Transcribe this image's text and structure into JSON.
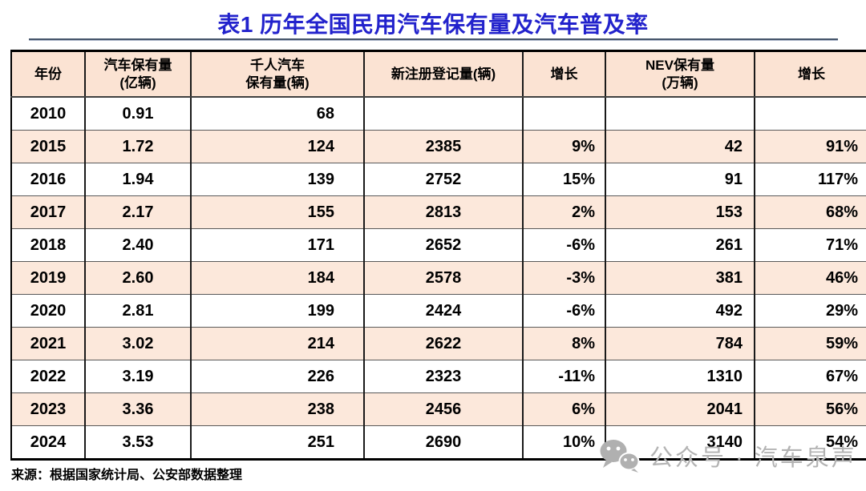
{
  "title": "表1 历年全国民用汽车保有量及汽车普及率",
  "chart_data": {
    "type": "table",
    "title": "表1 历年全国民用汽车保有量及汽车普及率",
    "columns": [
      "年份",
      "汽车保有量\n(亿辆)",
      "千人汽车\n保有量(辆)",
      "新注册登记量(辆)",
      "增长",
      "NEV保有量\n(万辆)",
      "增长"
    ],
    "rows": [
      [
        "2010",
        "0.91",
        "68",
        "",
        "",
        "",
        ""
      ],
      [
        "2015",
        "1.72",
        "124",
        "2385",
        "9%",
        "42",
        "91%"
      ],
      [
        "2016",
        "1.94",
        "139",
        "2752",
        "15%",
        "91",
        "117%"
      ],
      [
        "2017",
        "2.17",
        "155",
        "2813",
        "2%",
        "153",
        "68%"
      ],
      [
        "2018",
        "2.40",
        "171",
        "2652",
        "-6%",
        "261",
        "71%"
      ],
      [
        "2019",
        "2.60",
        "184",
        "2578",
        "-3%",
        "381",
        "46%"
      ],
      [
        "2020",
        "2.81",
        "199",
        "2424",
        "-6%",
        "492",
        "29%"
      ],
      [
        "2021",
        "3.02",
        "214",
        "2622",
        "8%",
        "784",
        "59%"
      ],
      [
        "2022",
        "3.19",
        "226",
        "2323",
        "-11%",
        "1310",
        "67%"
      ],
      [
        "2023",
        "3.36",
        "238",
        "2456",
        "6%",
        "2041",
        "56%"
      ],
      [
        "2024",
        "3.53",
        "251",
        "2690",
        "10%",
        "3140",
        "54%"
      ]
    ],
    "striped_row_indices": [
      1,
      3,
      5,
      7,
      9
    ],
    "colors": {
      "header_bg": "#FBE3D3",
      "stripe_bg": "#FCE8DB",
      "row_bg": "#FFFFFF",
      "title_text": "#2222CC",
      "rule": "#44546A",
      "watermark": "#B3B3B3"
    }
  },
  "footer": {
    "source": "来源：根据国家统计局、公安部数据整理"
  },
  "watermark": {
    "icon": "wechat-icon",
    "text": "公众号 · 汽车泉声"
  }
}
